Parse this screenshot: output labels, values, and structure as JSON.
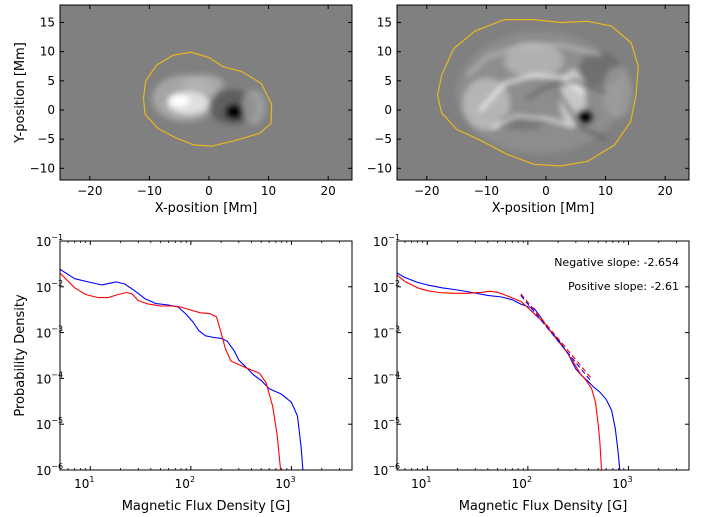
{
  "chart_data": [
    {
      "id": "map-left",
      "type": "heatmap",
      "xlabel": "X-position [Mm]",
      "ylabel": "Y-position [Mm]",
      "xlim": [
        -25,
        24
      ],
      "ylim": [
        -12,
        18
      ],
      "xticks": [
        -20,
        -10,
        0,
        10,
        20
      ],
      "yticks": [
        -10,
        -5,
        0,
        5,
        10,
        15
      ],
      "background": "#808080",
      "contour_color": "#e8b820",
      "contour": [
        [
          -11,
          2
        ],
        [
          -10.6,
          5
        ],
        [
          -8.8,
          7.7
        ],
        [
          -6,
          9.4
        ],
        [
          -3,
          9.9
        ],
        [
          0,
          9
        ],
        [
          2.4,
          7.4
        ],
        [
          5.5,
          6.6
        ],
        [
          8.8,
          4.5
        ],
        [
          10.5,
          1
        ],
        [
          10.4,
          -2.3
        ],
        [
          8.5,
          -4
        ],
        [
          4.5,
          -5.2
        ],
        [
          0.5,
          -6.2
        ],
        [
          -2.5,
          -6
        ],
        [
          -5.5,
          -4.8
        ],
        [
          -8.5,
          -3.2
        ],
        [
          -10.7,
          -0.8
        ],
        [
          -11,
          2
        ]
      ],
      "blobs": [
        {
          "x": -4,
          "y": 2,
          "rx": 5.5,
          "ry": 4,
          "c": "#a8a8a8",
          "o": 0.9
        },
        {
          "x": -3.5,
          "y": 1.2,
          "rx": 3.5,
          "ry": 2,
          "c": "#e6e6e6",
          "o": 0.9
        },
        {
          "x": -5,
          "y": 1.6,
          "rx": 1.8,
          "ry": 1,
          "c": "#ffffff",
          "o": 1
        },
        {
          "x": -1,
          "y": 4.5,
          "rx": 3.5,
          "ry": 1.6,
          "c": "#b8b8b8",
          "o": 0.7
        },
        {
          "x": 4,
          "y": 0.5,
          "rx": 4,
          "ry": 3,
          "c": "#555555",
          "o": 0.8
        },
        {
          "x": 4.3,
          "y": -0.3,
          "rx": 1.6,
          "ry": 1.3,
          "c": "#000000",
          "o": 1
        },
        {
          "x": 7.5,
          "y": 0.5,
          "rx": 2,
          "ry": 3,
          "c": "#b0b0b0",
          "o": 0.6
        }
      ]
    },
    {
      "id": "map-right",
      "type": "heatmap",
      "xlabel": "X-position [Mm]",
      "ylabel": "",
      "xlim": [
        -25,
        24
      ],
      "ylim": [
        -12,
        18
      ],
      "xticks": [
        -20,
        -10,
        0,
        10,
        20
      ],
      "yticks": [
        -10,
        -5,
        0,
        5,
        10,
        15
      ],
      "background": "#808080",
      "contour_color": "#e8b820",
      "contour": [
        [
          -17.5,
          6
        ],
        [
          -15.5,
          10.5
        ],
        [
          -12,
          13.5
        ],
        [
          -7,
          15.5
        ],
        [
          -2,
          15.5
        ],
        [
          2.5,
          15
        ],
        [
          7,
          15.2
        ],
        [
          11,
          14.4
        ],
        [
          14.3,
          11.5
        ],
        [
          15.5,
          7.5
        ],
        [
          15.1,
          2.5
        ],
        [
          14.2,
          -2
        ],
        [
          11.5,
          -6
        ],
        [
          7,
          -8.8
        ],
        [
          2.5,
          -9.6
        ],
        [
          -2,
          -9.3
        ],
        [
          -6.5,
          -7.6
        ],
        [
          -11,
          -5.2
        ],
        [
          -15,
          -3.3
        ],
        [
          -17.5,
          -0.5
        ],
        [
          -18.2,
          2.5
        ],
        [
          -17.5,
          6
        ]
      ],
      "blobs": [
        {
          "x": -1,
          "y": 3,
          "rx": 14,
          "ry": 10.5,
          "c": "#9a9a9a",
          "o": 0.5
        },
        {
          "x": -10,
          "y": 1,
          "rx": 4,
          "ry": 4.5,
          "c": "#d0d0d0",
          "o": 0.6
        },
        {
          "x": -2,
          "y": 8.5,
          "rx": 5,
          "ry": 3,
          "c": "#c8c8c8",
          "o": 0.6
        },
        {
          "x": 4.5,
          "y": 2,
          "rx": 2.2,
          "ry": 5,
          "c": "#e0e0e0",
          "o": 0.7
        },
        {
          "x": -4,
          "y": -2,
          "rx": 4,
          "ry": 1.5,
          "c": "#6a6a6a",
          "o": 0.6
        },
        {
          "x": 9,
          "y": 7,
          "rx": 3.5,
          "ry": 3,
          "c": "#5e5e5e",
          "o": 0.6
        },
        {
          "x": 6.5,
          "y": -1.2,
          "rx": 1.5,
          "ry": 1.3,
          "c": "#000000",
          "o": 1
        },
        {
          "x": 12,
          "y": 3,
          "rx": 2.5,
          "ry": 4.5,
          "c": "#a5a5a5",
          "o": 0.6
        }
      ],
      "swirls": [
        {
          "d": [
            [
              -11,
              0
            ],
            [
              -7,
              4.5
            ],
            [
              -2,
              6
            ],
            [
              3,
              5.5
            ],
            [
              6,
              3
            ]
          ],
          "c": "#f2f2f2",
          "w": 1.6
        },
        {
          "d": [
            [
              -9,
              -3
            ],
            [
              -5,
              -1
            ],
            [
              0,
              -1.5
            ],
            [
              4,
              -2.5
            ]
          ],
          "c": "#eeeeee",
          "w": 1.4
        },
        {
          "d": [
            [
              -13,
              6
            ],
            [
              -10,
              9
            ],
            [
              -4,
              11
            ],
            [
              3,
              11
            ],
            [
              9,
              9.5
            ]
          ],
          "c": "#c4c4c4",
          "w": 1.3
        },
        {
          "d": [
            [
              2,
              3
            ],
            [
              4,
              0
            ],
            [
              6,
              -3
            ],
            [
              10,
              -5
            ]
          ],
          "c": "#565656",
          "w": 1.2
        },
        {
          "d": [
            [
              -3,
              2
            ],
            [
              0,
              4
            ],
            [
              5,
              5
            ],
            [
              10,
              3
            ]
          ],
          "c": "#4a4a4a",
          "w": 1
        }
      ]
    },
    {
      "id": "pdf-left",
      "type": "line",
      "xlabel": "Magnetic Flux Density [G]",
      "ylabel": "Probability Density",
      "xscale": "log",
      "yscale": "log",
      "xlim": [
        5,
        4000
      ],
      "ylim": [
        1e-06,
        0.1
      ],
      "xticks": [
        {
          "value": 10,
          "base": "10",
          "exp": "1"
        },
        {
          "value": 100,
          "base": "10",
          "exp": "2"
        },
        {
          "value": 1000,
          "base": "10",
          "exp": "3"
        }
      ],
      "yticks": [
        {
          "value": 0.1,
          "base": "10",
          "exp": "-1"
        },
        {
          "value": 0.01,
          "base": "10",
          "exp": "-2"
        },
        {
          "value": 0.001,
          "base": "10",
          "exp": "-3"
        },
        {
          "value": 0.0001,
          "base": "10",
          "exp": "-4"
        },
        {
          "value": 1e-05,
          "base": "10",
          "exp": "-5"
        },
        {
          "value": 1e-06,
          "base": "10",
          "exp": "-6"
        }
      ],
      "series": [
        {
          "color": "#0000ff",
          "points": [
            [
              5,
              0.024
            ],
            [
              7,
              0.015
            ],
            [
              10,
              0.0125
            ],
            [
              13,
              0.011
            ],
            [
              18,
              0.0128
            ],
            [
              22,
              0.0115
            ],
            [
              28,
              0.008
            ],
            [
              35,
              0.0055
            ],
            [
              45,
              0.0043
            ],
            [
              60,
              0.004
            ],
            [
              75,
              0.0036
            ],
            [
              90,
              0.0025
            ],
            [
              105,
              0.0017
            ],
            [
              120,
              0.0011
            ],
            [
              140,
              0.00085
            ],
            [
              170,
              0.00078
            ],
            [
              200,
              0.00075
            ],
            [
              230,
              0.00065
            ],
            [
              270,
              0.0004
            ],
            [
              300,
              0.00025
            ],
            [
              350,
              0.00018
            ],
            [
              420,
              0.00012
            ],
            [
              500,
              9e-05
            ],
            [
              600,
              6e-05
            ],
            [
              800,
              4.5e-05
            ],
            [
              1000,
              3e-05
            ],
            [
              1150,
              1.5e-05
            ],
            [
              1250,
              3e-06
            ],
            [
              1300,
              1e-06
            ]
          ]
        },
        {
          "color": "#ff0000",
          "points": [
            [
              5,
              0.02
            ],
            [
              7,
              0.0095
            ],
            [
              9,
              0.0068
            ],
            [
              12,
              0.0058
            ],
            [
              15,
              0.0058
            ],
            [
              19,
              0.0068
            ],
            [
              23,
              0.0075
            ],
            [
              26,
              0.007
            ],
            [
              30,
              0.005
            ],
            [
              38,
              0.0042
            ],
            [
              50,
              0.0038
            ],
            [
              65,
              0.0038
            ],
            [
              80,
              0.0036
            ],
            [
              100,
              0.0031
            ],
            [
              125,
              0.0027
            ],
            [
              155,
              0.0026
            ],
            [
              180,
              0.0022
            ],
            [
              200,
              0.001
            ],
            [
              220,
              0.00045
            ],
            [
              250,
              0.00024
            ],
            [
              300,
              0.0002
            ],
            [
              380,
              0.00016
            ],
            [
              480,
              0.00013
            ],
            [
              560,
              8e-05
            ],
            [
              650,
              2.5e-05
            ],
            [
              720,
              6e-06
            ],
            [
              780,
              1e-06
            ]
          ]
        }
      ]
    },
    {
      "id": "pdf-right",
      "type": "line",
      "xlabel": "Magnetic Flux Density [G]",
      "ylabel": "",
      "xscale": "log",
      "yscale": "log",
      "xlim": [
        5,
        4000
      ],
      "ylim": [
        1e-06,
        0.1
      ],
      "xticks": [
        {
          "value": 10,
          "base": "10",
          "exp": "1"
        },
        {
          "value": 100,
          "base": "10",
          "exp": "2"
        },
        {
          "value": 1000,
          "base": "10",
          "exp": "3"
        }
      ],
      "yticks": [
        {
          "value": 0.1,
          "base": "10",
          "exp": "-1"
        },
        {
          "value": 0.01,
          "base": "10",
          "exp": "-2"
        },
        {
          "value": 0.001,
          "base": "10",
          "exp": "-3"
        },
        {
          "value": 0.0001,
          "base": "10",
          "exp": "-4"
        },
        {
          "value": 1e-05,
          "base": "10",
          "exp": "-5"
        },
        {
          "value": 1e-06,
          "base": "10",
          "exp": "-6"
        }
      ],
      "annotations": [
        "Negative slope: -2.654",
        "Positive slope: -2.61"
      ],
      "fits": [
        {
          "color": "#ff0000",
          "points": [
            [
              85,
              0.007
            ],
            [
              420,
              0.000105
            ]
          ]
        },
        {
          "color": "#0000ff",
          "points": [
            [
              85,
              0.0065
            ],
            [
              420,
              9e-05
            ]
          ]
        }
      ],
      "series": [
        {
          "color": "#0000ff",
          "points": [
            [
              5,
              0.02
            ],
            [
              6,
              0.016
            ],
            [
              8,
              0.0125
            ],
            [
              10,
              0.011
            ],
            [
              14,
              0.0095
            ],
            [
              20,
              0.0085
            ],
            [
              28,
              0.0075
            ],
            [
              40,
              0.0065
            ],
            [
              55,
              0.006
            ],
            [
              70,
              0.0052
            ],
            [
              85,
              0.0042
            ],
            [
              100,
              0.0037
            ],
            [
              115,
              0.0034
            ],
            [
              130,
              0.0024
            ],
            [
              160,
              0.0012
            ],
            [
              200,
              0.0007
            ],
            [
              250,
              0.00035
            ],
            [
              300,
              0.00016
            ],
            [
              350,
              0.00011
            ],
            [
              400,
              8.5e-05
            ],
            [
              450,
              6.5e-05
            ],
            [
              520,
              5e-05
            ],
            [
              600,
              3.5e-05
            ],
            [
              680,
              2e-05
            ],
            [
              740,
              8e-06
            ],
            [
              790,
              2.5e-06
            ],
            [
              820,
              1e-06
            ]
          ]
        },
        {
          "color": "#ff0000",
          "points": [
            [
              5,
              0.018
            ],
            [
              6,
              0.013
            ],
            [
              8,
              0.0095
            ],
            [
              10,
              0.0082
            ],
            [
              13,
              0.0075
            ],
            [
              18,
              0.0072
            ],
            [
              25,
              0.0072
            ],
            [
              35,
              0.0076
            ],
            [
              42,
              0.008
            ],
            [
              50,
              0.0076
            ],
            [
              60,
              0.0066
            ],
            [
              70,
              0.0057
            ],
            [
              85,
              0.0048
            ],
            [
              100,
              0.0035
            ],
            [
              120,
              0.0024
            ],
            [
              150,
              0.0015
            ],
            [
              190,
              0.00075
            ],
            [
              230,
              0.00045
            ],
            [
              280,
              0.00024
            ],
            [
              330,
              0.00013
            ],
            [
              380,
              9e-05
            ],
            [
              430,
              6e-05
            ],
            [
              470,
              3e-05
            ],
            [
              500,
              1e-05
            ],
            [
              520,
              4e-06
            ],
            [
              540,
              1e-06
            ]
          ]
        }
      ]
    }
  ]
}
